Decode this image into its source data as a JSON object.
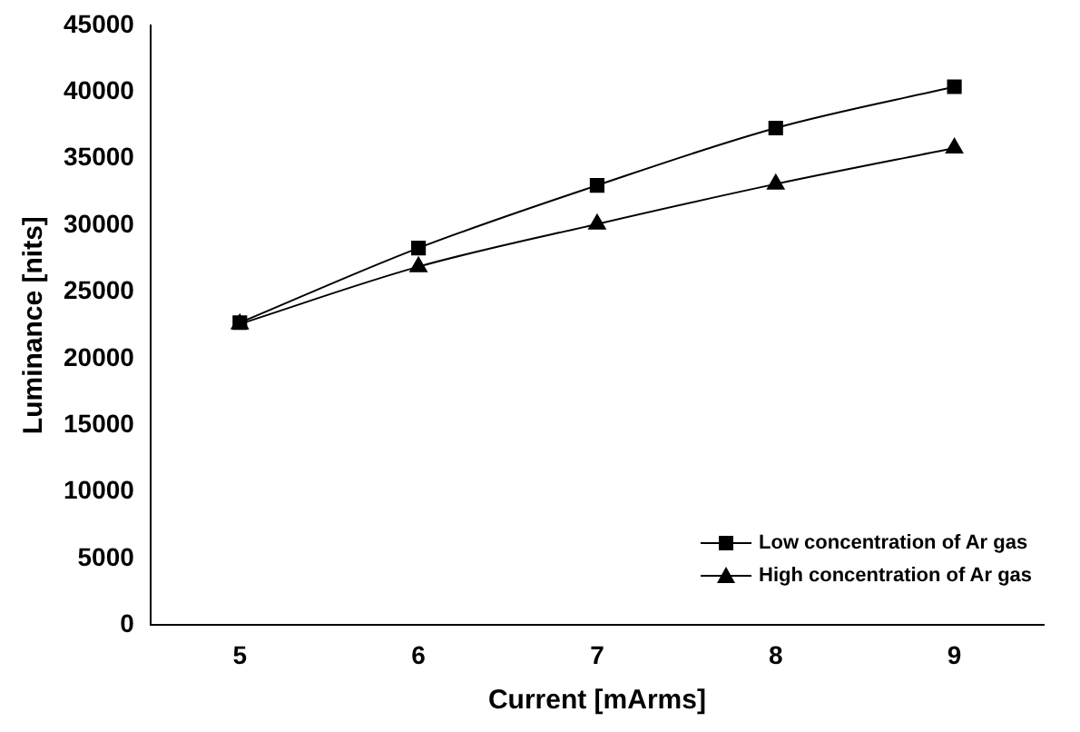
{
  "chart_data": {
    "type": "line",
    "xlabel": "Current [mArms]",
    "ylabel": "Luminance [nits]",
    "categories": [
      "5",
      "6",
      "7",
      "8",
      "9"
    ],
    "series": [
      {
        "name": "Low concentration of Ar gas",
        "color": "#000000",
        "marker": "square",
        "values": [
          22700,
          28300,
          33000,
          37300,
          40400
        ]
      },
      {
        "name": "High concentration of Ar gas",
        "color": "#000000",
        "marker": "triangle",
        "values": [
          22600,
          26900,
          30100,
          33100,
          35800
        ]
      }
    ],
    "ylim": [
      0,
      45000
    ],
    "yticks": [
      0,
      5000,
      10000,
      15000,
      20000,
      25000,
      30000,
      35000,
      40000,
      45000
    ],
    "grid": false,
    "legend": "bottom right",
    "line_style": "solid"
  }
}
